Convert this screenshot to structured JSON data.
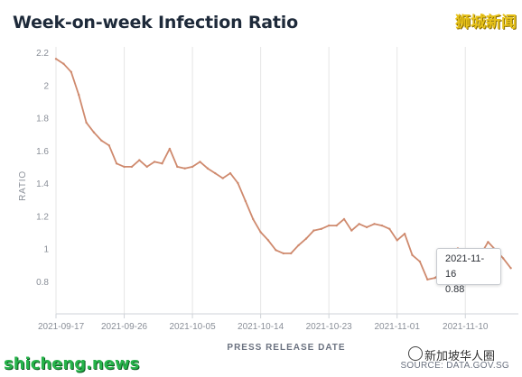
{
  "header": {
    "title": "Week-on-week Infection Ratio"
  },
  "watermarks": {
    "top_right": "狮城新闻",
    "bottom_left": "shicheng.news",
    "bottom_right": "新加坡华人圈"
  },
  "footer": {
    "source": "SOURCE: DATA.GOV.SG"
  },
  "tooltip": {
    "date": "2021-11-16",
    "value": "0.88"
  },
  "colors": {
    "line": "#cf8a6e",
    "grid": "#e6e6e6",
    "axis_text": "#8a8f98",
    "title": "#1e2a3a"
  },
  "chart_data": {
    "type": "line",
    "title": "Week-on-week Infection Ratio",
    "xlabel": "PRESS RELEASE DATE",
    "ylabel": "RATIO",
    "ylim": [
      0.6,
      2.2
    ],
    "yticks": [
      0.8,
      1,
      1.2,
      1.4,
      1.6,
      1.8,
      2,
      2.2
    ],
    "ytick_labels": [
      "0.8",
      "1",
      "1.2",
      "1.4",
      "1.6",
      "1.8",
      "2",
      "2.2"
    ],
    "xlim": [
      "2021-09-17",
      "2021-11-17"
    ],
    "xticks": [
      "2021-09-17",
      "2021-09-26",
      "2021-10-05",
      "2021-10-14",
      "2021-10-23",
      "2021-11-01",
      "2021-11-10"
    ],
    "grid": {
      "vertical": true,
      "horizontal": false
    },
    "x": [
      "2021-09-17",
      "2021-09-18",
      "2021-09-19",
      "2021-09-20",
      "2021-09-21",
      "2021-09-22",
      "2021-09-23",
      "2021-09-24",
      "2021-09-25",
      "2021-09-26",
      "2021-09-27",
      "2021-09-28",
      "2021-09-29",
      "2021-09-30",
      "2021-10-01",
      "2021-10-02",
      "2021-10-03",
      "2021-10-04",
      "2021-10-05",
      "2021-10-06",
      "2021-10-07",
      "2021-10-08",
      "2021-10-09",
      "2021-10-10",
      "2021-10-11",
      "2021-10-12",
      "2021-10-13",
      "2021-10-14",
      "2021-10-15",
      "2021-10-16",
      "2021-10-17",
      "2021-10-18",
      "2021-10-19",
      "2021-10-20",
      "2021-10-21",
      "2021-10-22",
      "2021-10-23",
      "2021-10-24",
      "2021-10-25",
      "2021-10-26",
      "2021-10-27",
      "2021-10-28",
      "2021-10-29",
      "2021-10-30",
      "2021-10-31",
      "2021-11-01",
      "2021-11-02",
      "2021-11-03",
      "2021-11-04",
      "2021-11-05",
      "2021-11-06",
      "2021-11-07",
      "2021-11-08",
      "2021-11-09",
      "2021-11-10",
      "2021-11-11",
      "2021-11-12",
      "2021-11-13",
      "2021-11-14",
      "2021-11-15",
      "2021-11-16"
    ],
    "values": [
      2.16,
      2.13,
      2.08,
      1.94,
      1.77,
      1.71,
      1.66,
      1.63,
      1.52,
      1.5,
      1.5,
      1.54,
      1.5,
      1.53,
      1.52,
      1.61,
      1.5,
      1.49,
      1.5,
      1.53,
      1.49,
      1.46,
      1.43,
      1.46,
      1.4,
      1.29,
      1.18,
      1.1,
      1.05,
      0.99,
      0.97,
      0.97,
      1.02,
      1.06,
      1.11,
      1.12,
      1.14,
      1.14,
      1.18,
      1.11,
      1.15,
      1.13,
      1.15,
      1.14,
      1.12,
      1.05,
      1.09,
      0.96,
      0.92,
      0.81,
      0.82,
      0.86,
      0.94,
      1.0,
      0.96,
      0.95,
      0.96,
      1.04,
      0.99,
      0.94,
      0.88
    ]
  }
}
